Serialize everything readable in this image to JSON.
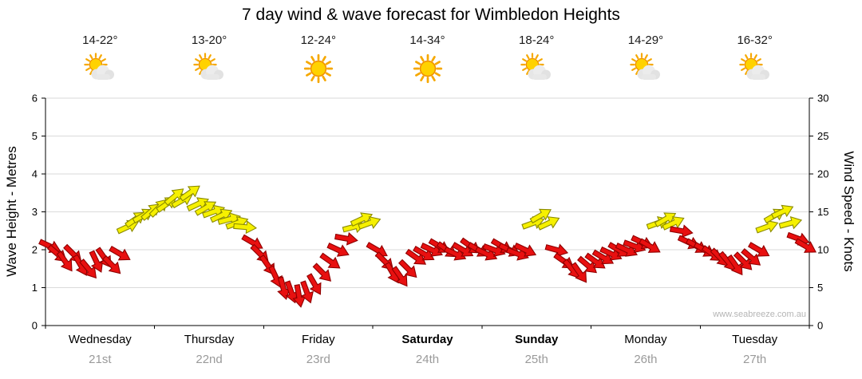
{
  "title": "7 day wind & wave forecast for Wimbledon Heights",
  "watermark": "www.seabreeze.com.au",
  "days": [
    {
      "name": "Wednesday",
      "date": "21st",
      "temp": "14-22°",
      "icon": "sun-cloud",
      "weekend": false
    },
    {
      "name": "Thursday",
      "date": "22nd",
      "temp": "13-20°",
      "icon": "sun-cloud",
      "weekend": false
    },
    {
      "name": "Friday",
      "date": "23rd",
      "temp": "12-24°",
      "icon": "sun",
      "weekend": false
    },
    {
      "name": "Saturday",
      "date": "24th",
      "temp": "14-34°",
      "icon": "sun",
      "weekend": true
    },
    {
      "name": "Sunday",
      "date": "25th",
      "temp": "18-24°",
      "icon": "sun-cloud",
      "weekend": true
    },
    {
      "name": "Monday",
      "date": "26th",
      "temp": "14-29°",
      "icon": "sun-cloud",
      "weekend": false
    },
    {
      "name": "Tuesday",
      "date": "27th",
      "temp": "16-32°",
      "icon": "sun-cloud",
      "weekend": false
    }
  ],
  "chart_data": {
    "type": "scatter",
    "title": "7 day wind & wave forecast for Wimbledon Heights",
    "ylabel_left": "Wave Height - Metres",
    "ylabel_right": "Wind Speed - Knots",
    "ylim_left": [
      0,
      6
    ],
    "ylim_right": [
      0,
      30
    ],
    "left_ticks": [
      0,
      1,
      2,
      3,
      4,
      5,
      6
    ],
    "right_ticks": [
      0,
      5,
      10,
      15,
      20,
      25,
      30
    ],
    "grid": true,
    "legend": "none",
    "x_categories": [
      "Wednesday",
      "Thursday",
      "Friday",
      "Saturday",
      "Sunday",
      "Monday",
      "Tuesday"
    ],
    "arrow_colors": {
      "strong": "#f6f000",
      "light": "#e81010",
      "strong_stroke": "#8a8a00",
      "light_stroke": "#8f0000",
      "threshold_knots": 13
    },
    "series": [
      {
        "day": "Wednesday",
        "wind_knots": [
          10.5,
          9.5,
          8.5,
          9.5,
          8,
          7.5,
          8.5,
          9,
          8,
          9.5,
          13,
          14,
          14.5,
          15
        ],
        "wind_dir_deg": [
          25,
          40,
          55,
          45,
          60,
          50,
          65,
          55,
          45,
          30,
          -25,
          -35,
          -30,
          -40
        ]
      },
      {
        "day": "Thursday",
        "wind_knots": [
          15.5,
          16,
          17,
          16.5,
          17.5,
          16,
          15.5,
          15,
          14.5,
          14,
          13.5,
          13,
          11,
          9.5
        ],
        "wind_dir_deg": [
          -45,
          -35,
          -40,
          -30,
          -35,
          -25,
          -30,
          -20,
          -25,
          -15,
          -20,
          5,
          30,
          45
        ]
      },
      {
        "day": "Friday",
        "wind_knots": [
          8,
          6.5,
          5,
          4.5,
          4,
          4.5,
          5.5,
          7,
          8.5,
          10,
          11.5,
          13,
          14,
          13.5
        ],
        "wind_dir_deg": [
          55,
          65,
          75,
          70,
          80,
          70,
          60,
          45,
          35,
          25,
          10,
          -15,
          -25,
          -20
        ]
      },
      {
        "day": "Saturday",
        "wind_knots": [
          10,
          8.5,
          7,
          6.5,
          7.5,
          9,
          9.5,
          10,
          10.5,
          10,
          9.5,
          10,
          10.5,
          10
        ],
        "wind_dir_deg": [
          30,
          45,
          60,
          55,
          45,
          35,
          30,
          25,
          30,
          35,
          25,
          30,
          35,
          30
        ]
      },
      {
        "day": "Sunday",
        "wind_knots": [
          9.5,
          10,
          10.5,
          10,
          9.5,
          10,
          13.5,
          14.5,
          13.5,
          10,
          8.5,
          7.5,
          7,
          8
        ],
        "wind_dir_deg": [
          25,
          20,
          30,
          25,
          20,
          25,
          -20,
          -30,
          -25,
          15,
          35,
          50,
          55,
          40
        ]
      },
      {
        "day": "Monday",
        "wind_knots": [
          8.5,
          9,
          9.5,
          10,
          10,
          10.5,
          11,
          10.5,
          13.5,
          14,
          13.5,
          12.5,
          11,
          10.5
        ],
        "wind_dir_deg": [
          35,
          30,
          25,
          30,
          25,
          20,
          25,
          30,
          -20,
          -30,
          -25,
          10,
          25,
          30
        ]
      },
      {
        "day": "Tuesday",
        "wind_knots": [
          10,
          9.5,
          9,
          8.5,
          8,
          8.5,
          9,
          10,
          13,
          14.5,
          15,
          13.5,
          11.5,
          10.5
        ],
        "wind_dir_deg": [
          30,
          35,
          45,
          50,
          55,
          45,
          40,
          30,
          -20,
          -30,
          -25,
          -15,
          20,
          30
        ]
      }
    ]
  }
}
